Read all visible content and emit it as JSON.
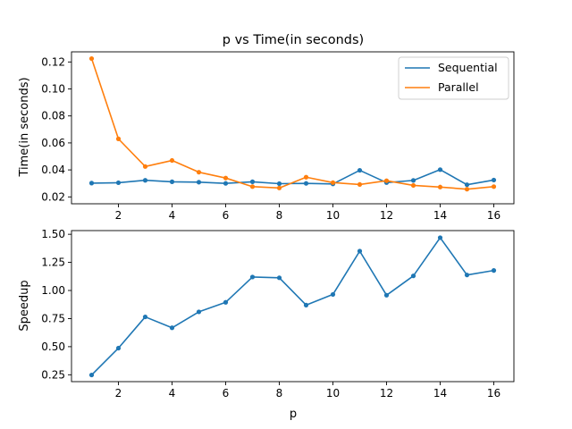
{
  "chart_data": [
    {
      "type": "line",
      "title": "p vs Time(in seconds)",
      "xlabel": "",
      "ylabel": "Time(in seconds)",
      "x": [
        1,
        2,
        3,
        4,
        5,
        6,
        7,
        8,
        9,
        10,
        11,
        12,
        13,
        14,
        15,
        16
      ],
      "xlim": [
        0.25,
        16.75
      ],
      "ylim": [
        0.0149,
        0.1275
      ],
      "xticks": [
        2,
        4,
        6,
        8,
        10,
        12,
        14,
        16
      ],
      "yticks": [
        0.02,
        0.04,
        0.06,
        0.08,
        0.1,
        0.12
      ],
      "ytick_labels": [
        "0.02",
        "0.04",
        "0.06",
        "0.08",
        "0.10",
        "0.12"
      ],
      "legend_position": "top-right",
      "grid": false,
      "series": [
        {
          "name": "Sequential",
          "color": "#1f77b4",
          "values": [
            0.0302,
            0.0305,
            0.0323,
            0.0312,
            0.0309,
            0.03,
            0.0312,
            0.0298,
            0.03,
            0.0296,
            0.0397,
            0.0306,
            0.0322,
            0.0402,
            0.029,
            0.0325
          ]
        },
        {
          "name": "Parallel",
          "color": "#ff7f0e",
          "values": [
            0.1225,
            0.063,
            0.0425,
            0.047,
            0.0383,
            0.034,
            0.0276,
            0.0266,
            0.0346,
            0.0306,
            0.0292,
            0.032,
            0.0285,
            0.0273,
            0.0257,
            0.0276
          ]
        }
      ]
    },
    {
      "type": "line",
      "title": "",
      "xlabel": "p",
      "ylabel": "Speedup",
      "x": [
        1,
        2,
        3,
        4,
        5,
        6,
        7,
        8,
        9,
        10,
        11,
        12,
        13,
        14,
        15,
        16
      ],
      "xlim": [
        0.25,
        16.75
      ],
      "ylim": [
        0.189,
        1.533
      ],
      "xticks": [
        2,
        4,
        6,
        8,
        10,
        12,
        14,
        16
      ],
      "yticks": [
        0.25,
        0.5,
        0.75,
        1.0,
        1.25,
        1.5
      ],
      "ytick_labels": [
        "0.25",
        "0.50",
        "0.75",
        "1.00",
        "1.25",
        "1.50"
      ],
      "grid": false,
      "series": [
        {
          "color": "#1f77b4",
          "values": [
            0.248,
            0.487,
            0.765,
            0.668,
            0.81,
            0.895,
            1.12,
            1.113,
            0.87,
            0.965,
            1.35,
            0.958,
            1.13,
            1.47,
            1.138,
            1.178
          ]
        }
      ]
    }
  ]
}
